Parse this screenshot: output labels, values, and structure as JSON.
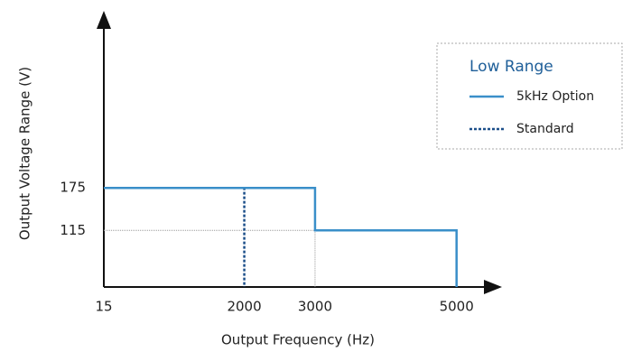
{
  "chart_data": {
    "type": "line",
    "x_label": "Output Frequency (Hz)",
    "y_label": "Output Voltage Range (V)",
    "legend_title": "Low Range",
    "legend": "top-right",
    "xlim": [
      15,
      5540
    ],
    "xticks": [
      15,
      2000,
      3000,
      5000
    ],
    "ylim": [
      35,
      415
    ],
    "yticks": [
      115,
      175
    ],
    "series": [
      {
        "name": "5kHz Option",
        "color": "#3a8fc9",
        "dash": "solid",
        "x": [
          15,
          3000,
          3000,
          5000,
          5000
        ],
        "values": [
          175,
          175,
          115,
          115,
          35
        ]
      },
      {
        "name": "Standard",
        "color": "#1c4f8a",
        "dash": "dotted",
        "x": [
          15,
          2000,
          2000
        ],
        "values": [
          175,
          175,
          35
        ]
      }
    ]
  }
}
